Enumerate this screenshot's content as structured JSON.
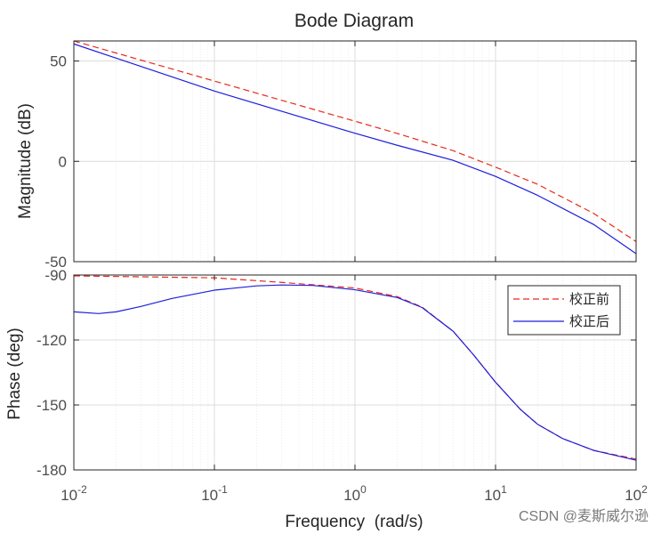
{
  "chart_data": [
    {
      "type": "line",
      "panel": "magnitude",
      "title": "Bode Diagram",
      "ylabel": "Magnitude (dB)",
      "xscale": "log",
      "xlim": [
        0.01,
        100
      ],
      "ylim": [
        -50,
        60
      ],
      "yticks": [
        50,
        0,
        -50
      ],
      "yticklabels": [
        "50",
        "0",
        "-50"
      ],
      "grid": true,
      "series": [
        {
          "name": "校正前",
          "color": "#e8291c",
          "style": "dashed",
          "x": [
            0.01,
            0.1,
            1,
            2,
            5,
            10,
            20,
            50,
            100
          ],
          "y": [
            60,
            40,
            20,
            13.9,
            5.3,
            -2.9,
            -11.5,
            -26.0,
            -40.0
          ]
        },
        {
          "name": "校正后",
          "color": "#1f1fdc",
          "style": "solid",
          "x": [
            0.01,
            0.1,
            1,
            2,
            5,
            10,
            20,
            50,
            100
          ],
          "y": [
            58.5,
            35.0,
            14.0,
            8.0,
            0.5,
            -7.5,
            -17.0,
            -31.5,
            -46.0
          ]
        }
      ]
    },
    {
      "type": "line",
      "panel": "phase",
      "xlabel": "Frequency  (rad/s)",
      "ylabel": "Phase (deg)",
      "xscale": "log",
      "xlim": [
        0.01,
        100
      ],
      "ylim": [
        -180,
        -90
      ],
      "yticks": [
        -90,
        -120,
        -150,
        -180
      ],
      "yticklabels": [
        "-90",
        "-120",
        "-150",
        "-180"
      ],
      "xticks": [
        0.01,
        0.1,
        1,
        10,
        100
      ],
      "xtick_bases": [
        "10",
        "10",
        "10",
        "10",
        "10"
      ],
      "xtick_exponents": [
        "-2",
        "-1",
        "0",
        "1",
        "2"
      ],
      "grid": true,
      "legend": "top-right",
      "series": [
        {
          "name": "校正前",
          "color": "#e8291c",
          "style": "dashed",
          "x": [
            0.01,
            0.1,
            0.3,
            1,
            2,
            3,
            5,
            7,
            10,
            15,
            20,
            30,
            50,
            100
          ],
          "y": [
            -90.4,
            -91.3,
            -93.4,
            -96.0,
            -100.0,
            -104.8,
            -116.0,
            -127.0,
            -139.5,
            -152.0,
            -159.0,
            -165.5,
            -171.0,
            -175.0
          ]
        },
        {
          "name": "校正后",
          "color": "#1f1fdc",
          "style": "solid",
          "x": [
            0.01,
            0.015,
            0.02,
            0.03,
            0.05,
            0.1,
            0.2,
            0.3,
            0.5,
            1,
            2,
            3,
            5,
            7,
            10,
            15,
            20,
            30,
            50,
            100
          ],
          "y": [
            -107.0,
            -107.8,
            -107.0,
            -104.5,
            -100.8,
            -97.0,
            -95.0,
            -94.6,
            -94.8,
            -96.8,
            -100.4,
            -105.0,
            -116.0,
            -127.0,
            -139.5,
            -152.0,
            -159.0,
            -165.5,
            -171.0,
            -175.5
          ]
        }
      ]
    }
  ],
  "watermark": "CSDN @麦斯威尔逊"
}
